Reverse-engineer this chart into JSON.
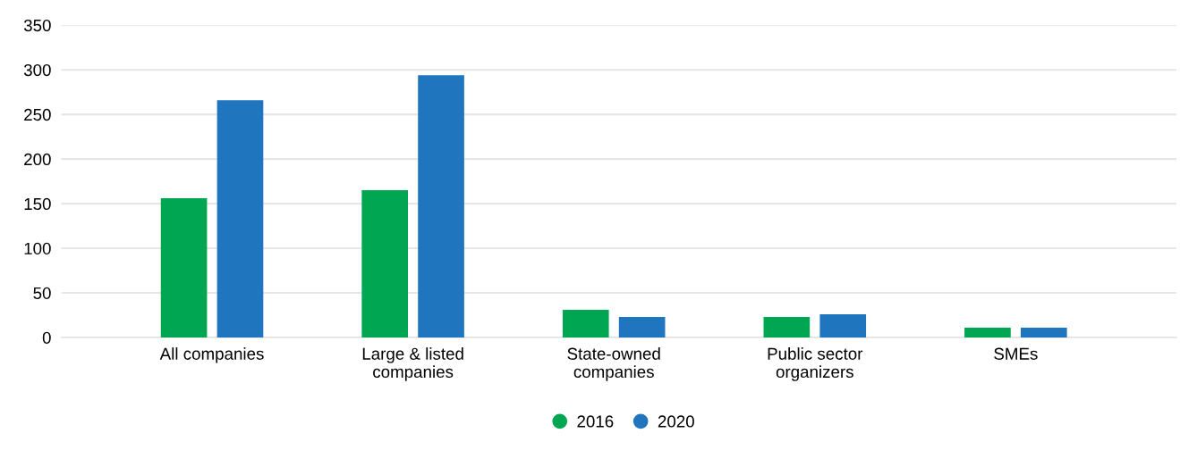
{
  "chart_data": {
    "type": "bar",
    "categories": [
      "All companies",
      "Large & listed\ncompanies",
      "State-owned\ncompanies",
      "Public sector\norganizers",
      "SMEs"
    ],
    "series": [
      {
        "name": "2016",
        "color": "#00a651",
        "values": [
          156,
          165,
          31,
          23,
          11
        ]
      },
      {
        "name": "2020",
        "color": "#1f75be",
        "values": [
          266,
          294,
          23,
          26,
          11
        ]
      }
    ],
    "ylim": [
      0,
      350
    ],
    "yticks": [
      0,
      50,
      100,
      150,
      200,
      250,
      300,
      350
    ],
    "grid": "y",
    "legend": "bottom",
    "marker": "circle"
  }
}
